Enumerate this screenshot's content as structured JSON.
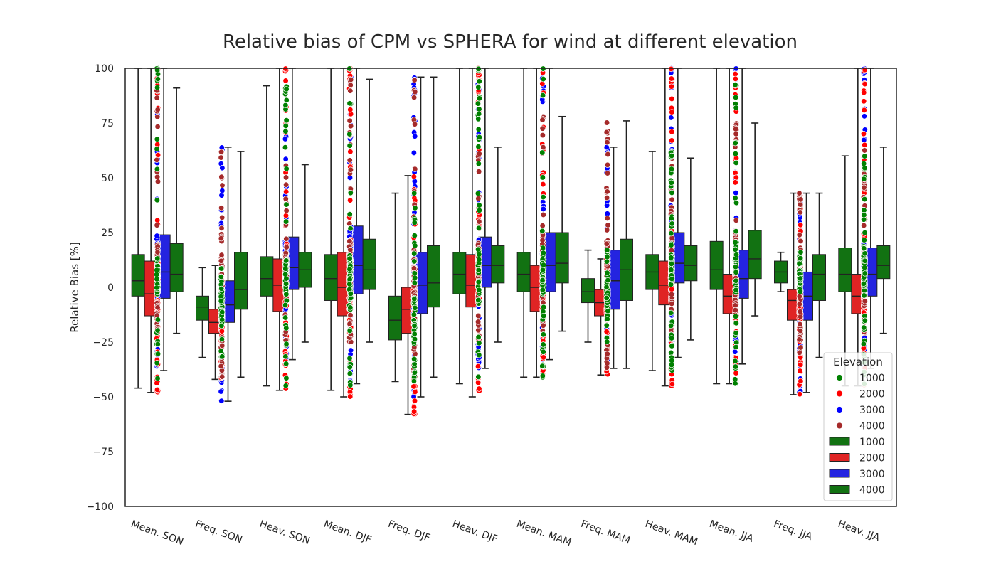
{
  "chart_data": {
    "type": "box",
    "title": "Relative bias of CPM vs SPHERA for wind at different elevation",
    "xlabel": "",
    "ylabel": "Relative Bias [%]",
    "ylim": [
      -100,
      100
    ],
    "yticks": [
      -100,
      -75,
      -50,
      -25,
      0,
      25,
      50,
      75,
      100
    ],
    "ytick_labels": [
      "−100",
      "−75",
      "−50",
      "−25",
      "0",
      "25",
      "50",
      "75",
      "100"
    ],
    "categories": [
      "Mean. SON",
      "Freq. SON",
      "Heav. SON",
      "Mean. DJF",
      "Freq. DJF",
      "Heav. DJF",
      "Mean. MAM",
      "Freq. MAM",
      "Heav. MAM",
      "Mean. JJA",
      "Freq. JJA",
      "Heav. JJA"
    ],
    "grid": false,
    "legend": {
      "title": "Elevation",
      "placement": "lower-right",
      "scatter_entries": [
        {
          "label": "1000",
          "color": "#008000"
        },
        {
          "label": "2000",
          "color": "#ff0000"
        },
        {
          "label": "3000",
          "color": "#0000ff"
        },
        {
          "label": "4000",
          "color": "#a52a2a"
        }
      ],
      "box_entries": [
        {
          "label": "1000",
          "color": "#127212"
        },
        {
          "label": "2000",
          "color": "#e02424"
        },
        {
          "label": "3000",
          "color": "#2424e0"
        },
        {
          "label": "4000",
          "color": "#127212"
        }
      ]
    },
    "series": [
      {
        "name": "1000",
        "box_color": "#127212",
        "point_color": "#008000",
        "stats": [
          [
            -46,
            -4,
            3,
            15,
            100
          ],
          [
            -32,
            -15,
            -9,
            -4,
            9
          ],
          [
            -45,
            -4,
            4,
            14,
            92
          ],
          [
            -47,
            -6,
            4,
            15,
            100
          ],
          [
            -43,
            -24,
            -15,
            -4,
            43
          ],
          [
            -44,
            -3,
            6,
            16,
            100
          ],
          [
            -41,
            -2,
            6,
            16,
            100
          ],
          [
            -25,
            -7,
            -2,
            4,
            17
          ],
          [
            -38,
            -1,
            7,
            15,
            62
          ],
          [
            -44,
            -1,
            8,
            21,
            100
          ],
          [
            -2,
            2,
            7,
            12,
            16
          ],
          [
            -45,
            -2,
            6,
            18,
            60
          ]
        ]
      },
      {
        "name": "2000",
        "box_color": "#e02424",
        "point_color": "#ff0000",
        "stats": [
          [
            -48,
            -13,
            -3,
            12,
            100
          ],
          [
            -42,
            -21,
            -16,
            -10,
            10
          ],
          [
            -47,
            -11,
            1,
            13,
            100
          ],
          [
            -50,
            -13,
            0,
            16,
            100
          ],
          [
            -58,
            -21,
            -10,
            0,
            51
          ],
          [
            -50,
            -9,
            1,
            15,
            100
          ],
          [
            -41,
            -11,
            0,
            10,
            100
          ],
          [
            -40,
            -13,
            -7,
            -1,
            13
          ],
          [
            -45,
            -8,
            1,
            12,
            100
          ],
          [
            -44,
            -12,
            -4,
            6,
            100
          ],
          [
            -49,
            -15,
            -6,
            -1,
            43
          ],
          [
            -45,
            -12,
            -4,
            6,
            100
          ]
        ]
      },
      {
        "name": "3000",
        "box_color": "#2424e0",
        "point_color": "#0000ff",
        "stats": [
          [
            -38,
            -5,
            7,
            24,
            100
          ],
          [
            -52,
            -16,
            -8,
            3,
            64
          ],
          [
            -33,
            -1,
            9,
            23,
            100
          ],
          [
            -44,
            -3,
            10,
            28,
            100
          ],
          [
            -50,
            -12,
            1,
            16,
            96
          ],
          [
            -37,
            0,
            10,
            23,
            100
          ],
          [
            -33,
            -2,
            10,
            25,
            100
          ],
          [
            -37,
            -10,
            3,
            17,
            64
          ],
          [
            -32,
            2,
            11,
            25,
            100
          ],
          [
            -35,
            -5,
            4,
            17,
            100
          ],
          [
            -48,
            -15,
            -4,
            7,
            43
          ],
          [
            -37,
            -4,
            6,
            18,
            100
          ]
        ]
      },
      {
        "name": "4000",
        "box_color": "#127212",
        "point_color": "#a52a2a",
        "stats": [
          [
            -21,
            -2,
            6,
            20,
            91
          ],
          [
            -41,
            -10,
            -1,
            16,
            62
          ],
          [
            -25,
            0,
            8,
            16,
            56
          ],
          [
            -25,
            -1,
            8,
            22,
            95
          ],
          [
            -41,
            -9,
            2,
            19,
            96
          ],
          [
            -25,
            2,
            10,
            19,
            64
          ],
          [
            -20,
            2,
            11,
            25,
            78
          ],
          [
            -37,
            -6,
            8,
            22,
            76
          ],
          [
            -24,
            3,
            10,
            19,
            59
          ],
          [
            -13,
            4,
            13,
            26,
            75
          ],
          [
            -32,
            -6,
            6,
            15,
            43
          ],
          [
            -21,
            4,
            10,
            19,
            64
          ]
        ]
      }
    ]
  }
}
